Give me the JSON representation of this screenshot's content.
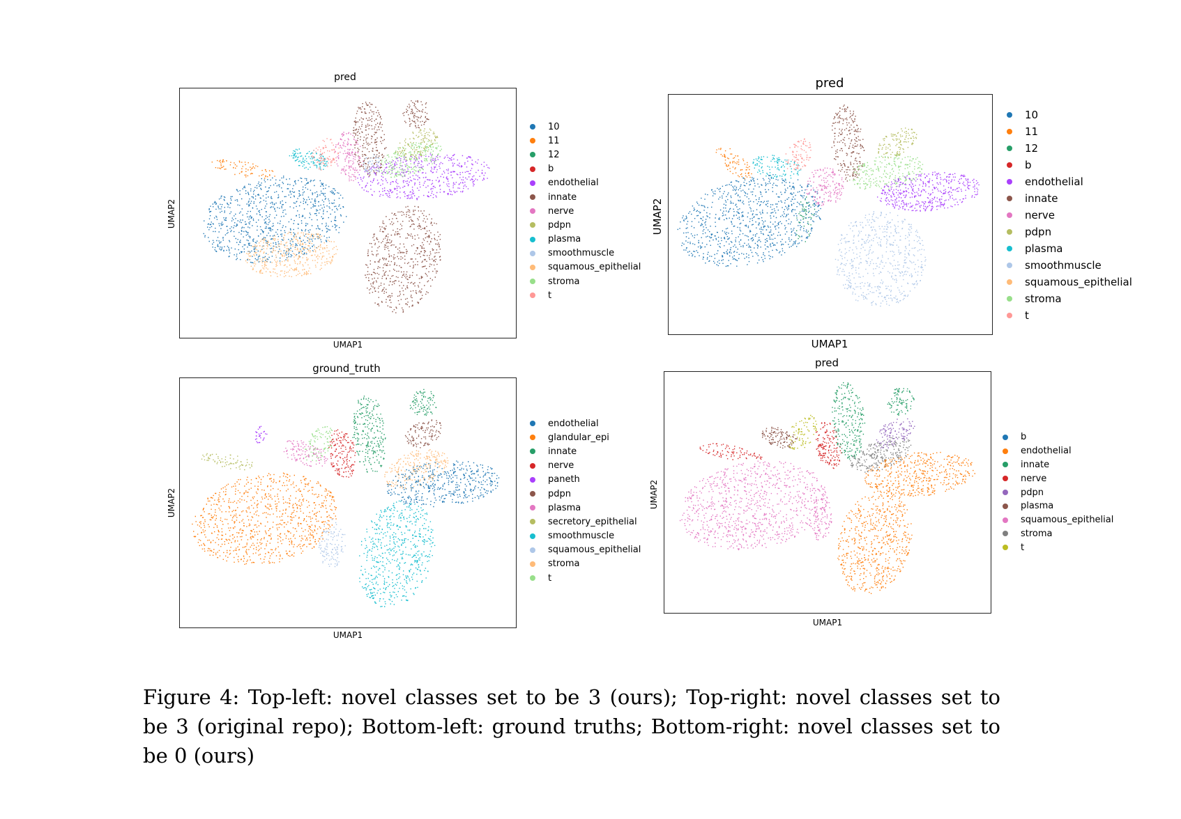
{
  "figure": {
    "caption": "Figure 4: Top-left: novel classes set to be 3 (ours); Top-right: novel classes set to be 3 (original repo); Bottom-left: ground truths; Bottom-right: novel classes set to be 0 (ours)"
  },
  "panels": [
    {
      "id": "top-left",
      "title": "pred",
      "xlabel": "UMAP1",
      "ylabel": "UMAP2",
      "legend": [
        {
          "label": "10",
          "color": "#1f77b4"
        },
        {
          "label": "11",
          "color": "#ff7f0e"
        },
        {
          "label": "12",
          "color": "#279e68"
        },
        {
          "label": "b",
          "color": "#d62728"
        },
        {
          "label": "endothelial",
          "color": "#aa40fc"
        },
        {
          "label": "innate",
          "color": "#8c564b"
        },
        {
          "label": "nerve",
          "color": "#e377c2"
        },
        {
          "label": "pdpn",
          "color": "#b5bd61"
        },
        {
          "label": "plasma",
          "color": "#17becf"
        },
        {
          "label": "smoothmuscle",
          "color": "#aec7e8"
        },
        {
          "label": "squamous_epithelial",
          "color": "#ffbb78"
        },
        {
          "label": "stroma",
          "color": "#98df8a"
        },
        {
          "label": "t",
          "color": "#ff9896"
        }
      ]
    },
    {
      "id": "top-right",
      "title": "pred",
      "xlabel": "UMAP1",
      "ylabel": "UMAP2",
      "legend": [
        {
          "label": "10",
          "color": "#1f77b4"
        },
        {
          "label": "11",
          "color": "#ff7f0e"
        },
        {
          "label": "12",
          "color": "#279e68"
        },
        {
          "label": "b",
          "color": "#d62728"
        },
        {
          "label": "endothelial",
          "color": "#aa40fc"
        },
        {
          "label": "innate",
          "color": "#8c564b"
        },
        {
          "label": "nerve",
          "color": "#e377c2"
        },
        {
          "label": "pdpn",
          "color": "#b5bd61"
        },
        {
          "label": "plasma",
          "color": "#17becf"
        },
        {
          "label": "smoothmuscle",
          "color": "#aec7e8"
        },
        {
          "label": "squamous_epithelial",
          "color": "#ffbb78"
        },
        {
          "label": "stroma",
          "color": "#98df8a"
        },
        {
          "label": "t",
          "color": "#ff9896"
        }
      ]
    },
    {
      "id": "bottom-left",
      "title": "ground_truth",
      "xlabel": "UMAP1",
      "ylabel": "UMAP2",
      "legend": [
        {
          "label": "endothelial",
          "color": "#1f77b4"
        },
        {
          "label": "glandular_epi",
          "color": "#ff7f0e"
        },
        {
          "label": "innate",
          "color": "#279e68"
        },
        {
          "label": "nerve",
          "color": "#d62728"
        },
        {
          "label": "paneth",
          "color": "#aa40fc"
        },
        {
          "label": "pdpn",
          "color": "#8c564b"
        },
        {
          "label": "plasma",
          "color": "#e377c2"
        },
        {
          "label": "secretory_epithelial",
          "color": "#b5bd61"
        },
        {
          "label": "smoothmuscle",
          "color": "#17becf"
        },
        {
          "label": "squamous_epithelial",
          "color": "#aec7e8"
        },
        {
          "label": "stroma",
          "color": "#ffbb78"
        },
        {
          "label": "t",
          "color": "#98df8a"
        }
      ]
    },
    {
      "id": "bottom-right",
      "title": "pred",
      "xlabel": "UMAP1",
      "ylabel": "UMAP2",
      "legend": [
        {
          "label": "b",
          "color": "#1f77b4"
        },
        {
          "label": "endothelial",
          "color": "#ff7f0e"
        },
        {
          "label": "innate",
          "color": "#279e68"
        },
        {
          "label": "nerve",
          "color": "#d62728"
        },
        {
          "label": "pdpn",
          "color": "#9467bd"
        },
        {
          "label": "plasma",
          "color": "#8c564b"
        },
        {
          "label": "squamous_epithelial",
          "color": "#e377c2"
        },
        {
          "label": "stroma",
          "color": "#7f7f7f"
        },
        {
          "label": "t",
          "color": "#bcbd22"
        }
      ]
    }
  ],
  "chart_data": [
    {
      "type": "scatter",
      "title": "pred",
      "xlabel": "UMAP1",
      "ylabel": "UMAP2",
      "series": [
        {
          "name": "10"
        },
        {
          "name": "11"
        },
        {
          "name": "12"
        },
        {
          "name": "b"
        },
        {
          "name": "endothelial"
        },
        {
          "name": "innate"
        },
        {
          "name": "nerve"
        },
        {
          "name": "pdpn"
        },
        {
          "name": "plasma"
        },
        {
          "name": "smoothmuscle"
        },
        {
          "name": "squamous_epithelial"
        },
        {
          "name": "stroma"
        },
        {
          "name": "t"
        }
      ]
    },
    {
      "type": "scatter",
      "title": "pred",
      "xlabel": "UMAP1",
      "ylabel": "UMAP2",
      "series": [
        {
          "name": "10"
        },
        {
          "name": "11"
        },
        {
          "name": "12"
        },
        {
          "name": "b"
        },
        {
          "name": "endothelial"
        },
        {
          "name": "innate"
        },
        {
          "name": "nerve"
        },
        {
          "name": "pdpn"
        },
        {
          "name": "plasma"
        },
        {
          "name": "smoothmuscle"
        },
        {
          "name": "squamous_epithelial"
        },
        {
          "name": "stroma"
        },
        {
          "name": "t"
        }
      ]
    },
    {
      "type": "scatter",
      "title": "ground_truth",
      "xlabel": "UMAP1",
      "ylabel": "UMAP2",
      "series": [
        {
          "name": "endothelial"
        },
        {
          "name": "glandular_epi"
        },
        {
          "name": "innate"
        },
        {
          "name": "nerve"
        },
        {
          "name": "paneth"
        },
        {
          "name": "pdpn"
        },
        {
          "name": "plasma"
        },
        {
          "name": "secretory_epithelial"
        },
        {
          "name": "smoothmuscle"
        },
        {
          "name": "squamous_epithelial"
        },
        {
          "name": "stroma"
        },
        {
          "name": "t"
        }
      ]
    },
    {
      "type": "scatter",
      "title": "pred",
      "xlabel": "UMAP1",
      "ylabel": "UMAP2",
      "series": [
        {
          "name": "b"
        },
        {
          "name": "endothelial"
        },
        {
          "name": "innate"
        },
        {
          "name": "nerve"
        },
        {
          "name": "pdpn"
        },
        {
          "name": "plasma"
        },
        {
          "name": "squamous_epithelial"
        },
        {
          "name": "stroma"
        },
        {
          "name": "t"
        }
      ]
    }
  ]
}
